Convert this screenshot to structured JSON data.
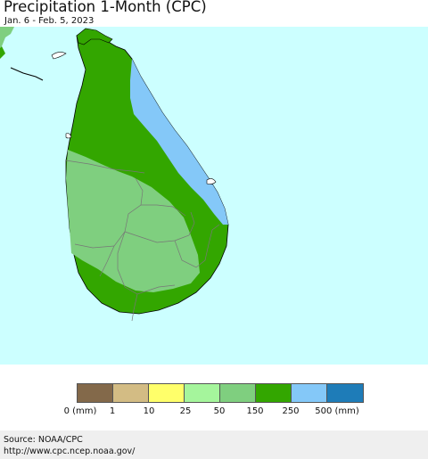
{
  "title": "Precipitation 1-Month (CPC)",
  "subtitle": "Jan. 6 - Feb. 5, 2023",
  "map": {
    "region_label": "",
    "colors": {
      "ocean": "#ccffff",
      "class_0_1": "#83694a",
      "class_1_10": "#d3bc84",
      "class_10_25": "#ffff6a",
      "class_25_50": "#a5f59c",
      "class_50_150": "#7fcf7f",
      "class_150_250": "#33a600",
      "class_250_500": "#84c8f8",
      "class_500_plus": "#1e7cb8"
    }
  },
  "legend": {
    "swatches": [
      {
        "name": "0-1",
        "color": "#83694a"
      },
      {
        "name": "1-10",
        "color": "#d3bc84"
      },
      {
        "name": "10-25",
        "color": "#ffff6a"
      },
      {
        "name": "25-50",
        "color": "#a5f59c"
      },
      {
        "name": "50-150",
        "color": "#7fcf7f"
      },
      {
        "name": "150-250",
        "color": "#33a600"
      },
      {
        "name": "250-500",
        "color": "#84c8f8"
      },
      {
        "name": "500+",
        "color": "#1e7cb8"
      }
    ],
    "labels": [
      "0 (mm)",
      "1",
      "10",
      "25",
      "50",
      "150",
      "250",
      "500 (mm)"
    ]
  },
  "footer": {
    "source": "Source: NOAA/CPC",
    "url": "http://www.cpc.ncep.noaa.gov/"
  }
}
